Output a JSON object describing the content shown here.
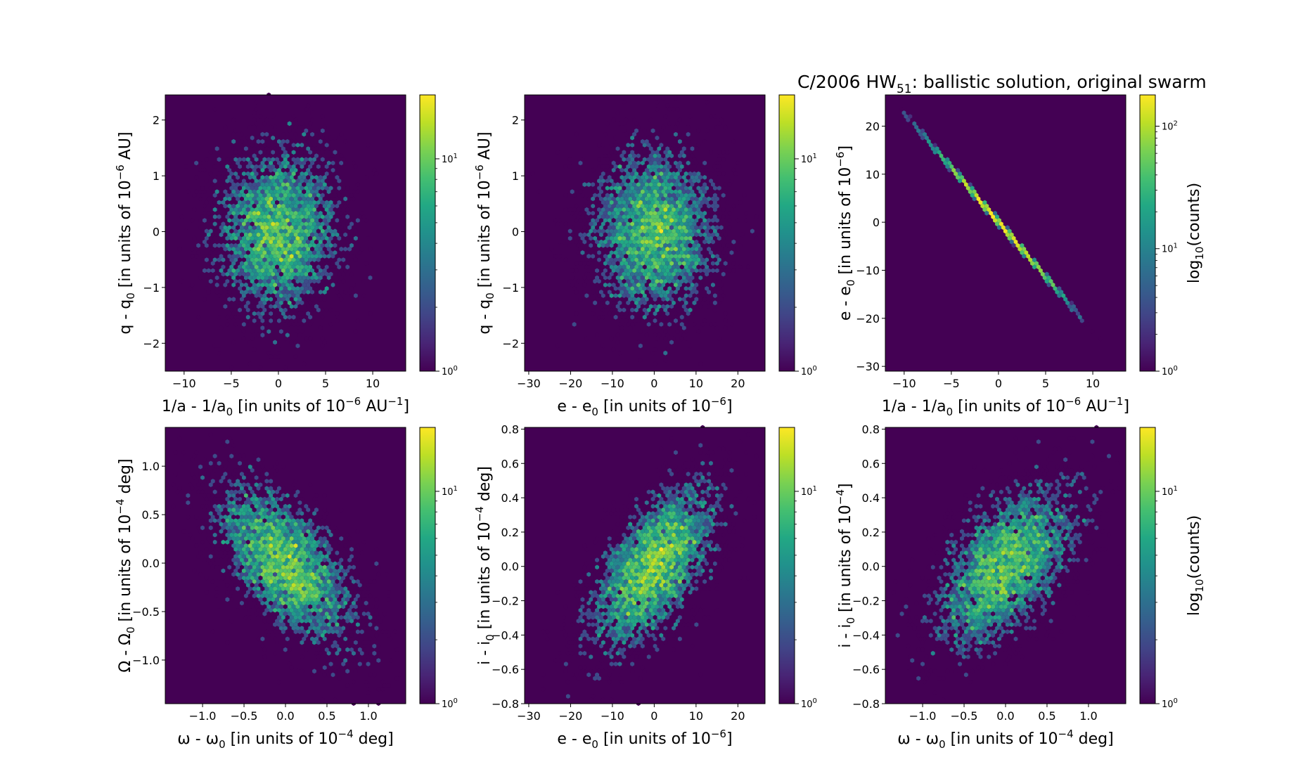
{
  "title": {
    "main": "C/2006 HW",
    "sub": "51",
    "rest": ":  ballistic solution, original swarm"
  },
  "colormap": {
    "name": "viridis",
    "low": "#440154",
    "high": "#fde725"
  },
  "chart_data": [
    {
      "type": "hexbin",
      "xlabel": {
        "pre": "1/a - 1/a",
        "sub": "0",
        "mid": " [in units of 10",
        "sup": "−6",
        "post": " AU",
        "sup2": "−1",
        "end": "]"
      },
      "ylabel": {
        "pre": "q - q",
        "sub": "0",
        "mid": " [in units of 10",
        "sup": "−6",
        "end": " AU]"
      },
      "xlim": [
        -12,
        13.5
      ],
      "ylim": [
        -2.5,
        2.45
      ],
      "xticks": [
        -10,
        -5,
        0,
        5,
        10
      ],
      "xtick_labels": [
        "−10",
        "−5",
        "0",
        "5",
        "10"
      ],
      "yticks": [
        -2,
        -1,
        0,
        1,
        2
      ],
      "ytick_labels": [
        "−2",
        "−1",
        "0",
        "1",
        "2"
      ],
      "distribution": {
        "kind": "gaussian",
        "mean": [
          0,
          0
        ],
        "std": [
          3.3,
          0.75
        ],
        "corr": 0.0,
        "samples": 5000
      },
      "colorbar": {
        "scale": "log",
        "max": 20,
        "ticks": [
          1,
          10
        ],
        "tick_labels": [
          {
            "base": "10",
            "exp": "0"
          },
          {
            "base": "10",
            "exp": "1"
          }
        ],
        "label": null
      }
    },
    {
      "type": "hexbin",
      "xlabel": {
        "pre": "e - e",
        "sub": "0",
        "mid": " [in units of 10",
        "sup": "−6",
        "end": "]"
      },
      "ylabel": {
        "pre": "q - q",
        "sub": "0",
        "mid": " [in units of 10",
        "sup": "−6",
        "end": " AU]"
      },
      "xlim": [
        -31,
        26.5
      ],
      "ylim": [
        -2.5,
        2.45
      ],
      "xticks": [
        -30,
        -20,
        -10,
        0,
        10,
        20
      ],
      "xtick_labels": [
        "−30",
        "−20",
        "−10",
        "0",
        "10",
        "20"
      ],
      "yticks": [
        -2,
        -1,
        0,
        1,
        2
      ],
      "ytick_labels": [
        "−2",
        "−1",
        "0",
        "1",
        "2"
      ],
      "distribution": {
        "kind": "gaussian",
        "mean": [
          0,
          0
        ],
        "std": [
          7.5,
          0.75
        ],
        "corr": 0.0,
        "samples": 5000
      },
      "colorbar": {
        "scale": "log",
        "max": 20,
        "ticks": [
          1,
          10
        ],
        "tick_labels": [
          {
            "base": "10",
            "exp": "0"
          },
          {
            "base": "10",
            "exp": "1"
          }
        ],
        "label": null
      }
    },
    {
      "type": "hexbin",
      "xlabel": {
        "pre": "1/a - 1/a",
        "sub": "0",
        "mid": " [in units of 10",
        "sup": "−6",
        "post": " AU",
        "sup2": "−1",
        "end": "]"
      },
      "ylabel": {
        "pre": "e - e",
        "sub": "0",
        "mid": " [in units of 10",
        "sup": "−6",
        "end": "]"
      },
      "xlim": [
        -12,
        13.5
      ],
      "ylim": [
        -31,
        26.5
      ],
      "xticks": [
        -10,
        -5,
        0,
        5,
        10
      ],
      "xtick_labels": [
        "−10",
        "−5",
        "0",
        "5",
        "10"
      ],
      "yticks": [
        -30,
        -20,
        -10,
        0,
        10,
        20
      ],
      "ytick_labels": [
        "−30",
        "−20",
        "−10",
        "0",
        "10",
        "20"
      ],
      "distribution": {
        "kind": "line",
        "x_range": [
          -11,
          10.8
        ],
        "slope": -2.27,
        "intercept": 0,
        "std_x": 3.3,
        "samples": 5000
      },
      "colorbar": {
        "scale": "log",
        "max": 180,
        "ticks": [
          1,
          10,
          100
        ],
        "tick_labels": [
          {
            "base": "10",
            "exp": "0"
          },
          {
            "base": "10",
            "exp": "1"
          },
          {
            "base": "10",
            "exp": "2"
          }
        ],
        "label": {
          "pre": "log",
          "sub": "10",
          "end": "(counts)"
        }
      }
    },
    {
      "type": "hexbin",
      "xlabel": {
        "pre": "ω - ω",
        "sub": "0",
        "mid": " [in units of 10",
        "sup": "−4",
        "end": " deg]"
      },
      "ylabel": {
        "pre": "Ω - Ω",
        "sub": "0",
        "mid": " [in units of 10",
        "sup": "−4",
        "end": " deg]"
      },
      "xlim": [
        -1.45,
        1.45
      ],
      "ylim": [
        -1.45,
        1.4
      ],
      "xticks": [
        -1.0,
        -0.5,
        0.0,
        0.5,
        1.0
      ],
      "xtick_labels": [
        "−1.0",
        "−0.5",
        "0.0",
        "0.5",
        "1.0"
      ],
      "yticks": [
        -1.0,
        -0.5,
        0.0,
        0.5,
        1.0
      ],
      "ytick_labels": [
        "−1.0",
        "−0.5",
        "0.0",
        "0.5",
        "1.0"
      ],
      "distribution": {
        "kind": "gaussian",
        "mean": [
          0,
          0
        ],
        "std": [
          0.42,
          0.42
        ],
        "corr": -0.6,
        "samples": 5000
      },
      "colorbar": {
        "scale": "log",
        "max": 20,
        "ticks": [
          1,
          10
        ],
        "tick_labels": [
          {
            "base": "10",
            "exp": "0"
          },
          {
            "base": "10",
            "exp": "1"
          }
        ],
        "label": null
      }
    },
    {
      "type": "hexbin",
      "xlabel": {
        "pre": "e - e",
        "sub": "0",
        "mid": " [in units of 10",
        "sup": "−6",
        "end": "]"
      },
      "ylabel": {
        "pre": "i - i",
        "sub": "0",
        "mid": " [in units of 10",
        "sup": "−4",
        "end": " deg]"
      },
      "xlim": [
        -31,
        26.5
      ],
      "ylim": [
        -0.8,
        0.81
      ],
      "xticks": [
        -30,
        -20,
        -10,
        0,
        10,
        20
      ],
      "xtick_labels": [
        "−30",
        "−20",
        "−10",
        "0",
        "10",
        "20"
      ],
      "yticks": [
        -0.8,
        -0.6,
        -0.4,
        -0.2,
        0.0,
        0.2,
        0.4,
        0.6,
        0.8
      ],
      "ytick_labels": [
        "−0.8",
        "−0.6",
        "−0.4",
        "−0.2",
        "0.0",
        "0.2",
        "0.4",
        "0.6",
        "0.8"
      ],
      "distribution": {
        "kind": "gaussian",
        "mean": [
          0,
          0
        ],
        "std": [
          7.5,
          0.24
        ],
        "corr": 0.6,
        "samples": 5000
      },
      "colorbar": {
        "scale": "log",
        "max": 20,
        "ticks": [
          1,
          10
        ],
        "tick_labels": [
          {
            "base": "10",
            "exp": "0"
          },
          {
            "base": "10",
            "exp": "1"
          }
        ],
        "label": null
      }
    },
    {
      "type": "hexbin",
      "xlabel": {
        "pre": "ω - ω",
        "sub": "0",
        "mid": " [in units of 10",
        "sup": "−4",
        "end": " deg]"
      },
      "ylabel": {
        "pre": "i - i",
        "sub": "0",
        "mid": " [in units of 10",
        "sup": "−4",
        "end": "]"
      },
      "xlim": [
        -1.45,
        1.45
      ],
      "ylim": [
        -0.8,
        0.81
      ],
      "xticks": [
        -1.0,
        -0.5,
        0.0,
        0.5,
        1.0
      ],
      "xtick_labels": [
        "−1.0",
        "−0.5",
        "0.0",
        "0.5",
        "1.0"
      ],
      "yticks": [
        -0.8,
        -0.6,
        -0.4,
        -0.2,
        0.0,
        0.2,
        0.4,
        0.6,
        0.8
      ],
      "ytick_labels": [
        "−0.8",
        "−0.6",
        "−0.4",
        "−0.2",
        "0.0",
        "0.2",
        "0.4",
        "0.6",
        "0.8"
      ],
      "distribution": {
        "kind": "gaussian",
        "mean": [
          0,
          0
        ],
        "std": [
          0.42,
          0.24
        ],
        "corr": 0.55,
        "samples": 5000
      },
      "colorbar": {
        "scale": "log",
        "max": 20,
        "ticks": [
          1,
          10
        ],
        "tick_labels": [
          {
            "base": "10",
            "exp": "0"
          },
          {
            "base": "10",
            "exp": "1"
          }
        ],
        "label": {
          "pre": "log",
          "sub": "10",
          "end": "(counts)"
        }
      }
    }
  ]
}
